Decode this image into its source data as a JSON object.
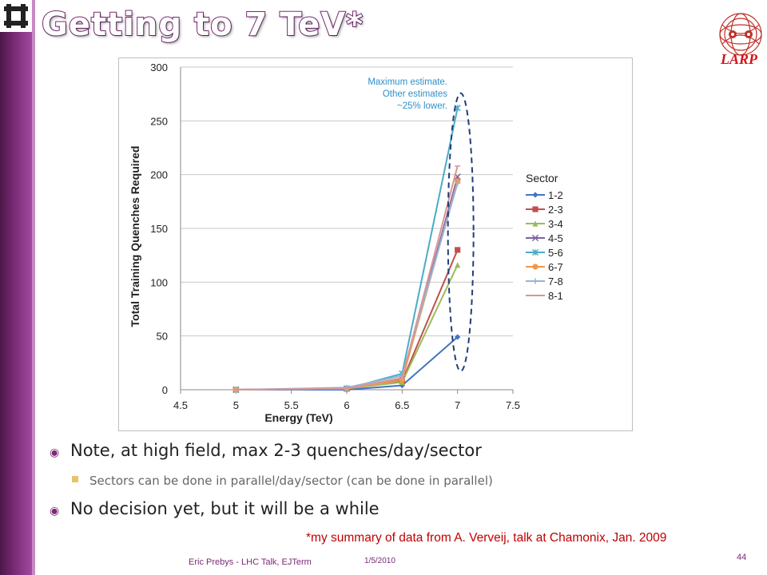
{
  "slide": {
    "title": "Getting to 7 TeV*",
    "larp_label": "LARP",
    "bullets": [
      "Note, at high field, max 2-3 quenches/day/sector",
      "Sectors can be done in parallel/day/sector  (can be done in parallel)",
      "No decision yet, but it will be a while"
    ],
    "footnote": "*my summary of data from A. Verveij, talk at Chamonix, Jan. 2009",
    "footer_left": "Eric Prebys - LHC Talk, EJTerm",
    "footer_date": "1/5/2010",
    "page_number": "44"
  },
  "chart_data": {
    "type": "line",
    "xlabel": "Energy (TeV)",
    "ylabel": "Total Training Quenches Required",
    "xlim": [
      4.5,
      7.5
    ],
    "ylim": [
      0,
      300
    ],
    "xticks": [
      "4.5",
      "5",
      "5.5",
      "6",
      "6.5",
      "7",
      "7.5"
    ],
    "yticks": [
      "0",
      "50",
      "100",
      "150",
      "200",
      "250",
      "300"
    ],
    "grid": "horizontal",
    "legend_title": "Sector",
    "legend_position": "right",
    "x": [
      5,
      6,
      6.5,
      7
    ],
    "annotation": [
      "Maximum estimate.",
      "Other estimates",
      "~25% lower."
    ],
    "series": [
      {
        "name": "1-2",
        "color": "#4472c4",
        "marker": "diamond",
        "values": [
          0,
          0,
          4,
          49
        ]
      },
      {
        "name": "2-3",
        "color": "#c0504d",
        "marker": "square",
        "values": [
          0,
          1,
          8,
          130
        ]
      },
      {
        "name": "3-4",
        "color": "#9bbb59",
        "marker": "triangle",
        "values": [
          0,
          1,
          7,
          116
        ]
      },
      {
        "name": "4-5",
        "color": "#7f60a0",
        "marker": "x",
        "values": [
          0,
          1,
          10,
          198
        ]
      },
      {
        "name": "5-6",
        "color": "#4bacc6",
        "marker": "star",
        "values": [
          0,
          1,
          15,
          262
        ]
      },
      {
        "name": "6-7",
        "color": "#f79646",
        "marker": "circle",
        "values": [
          0,
          1,
          9,
          194
        ]
      },
      {
        "name": "7-8",
        "color": "#95b3d7",
        "marker": "plus",
        "values": [
          0,
          2,
          13,
          192
        ]
      },
      {
        "name": "8-1",
        "color": "#d99694",
        "marker": "dash",
        "values": [
          0,
          1,
          11,
          208
        ]
      }
    ]
  }
}
